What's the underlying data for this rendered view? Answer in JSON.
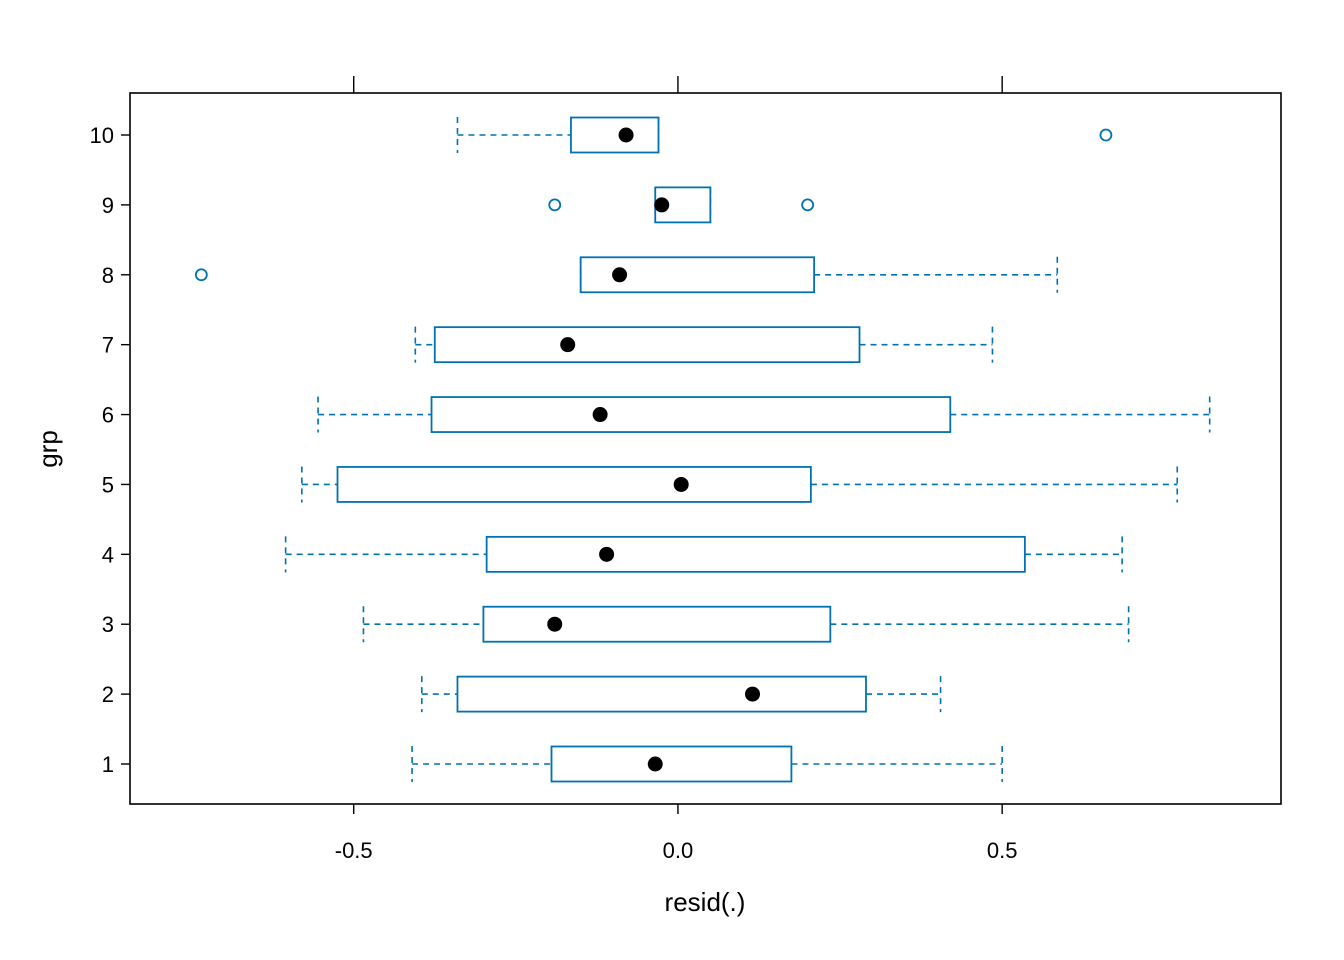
{
  "chart_data": {
    "type": "boxplot",
    "orientation": "horizontal",
    "xlabel": "resid(.)",
    "ylabel": "grp",
    "xlim": [
      -0.845,
      0.93
    ],
    "x_ticks": [
      -0.5,
      0.0,
      0.5
    ],
    "x_tick_labels": [
      "-0.5",
      "0.0",
      "0.5"
    ],
    "x_ticks_top": true,
    "grid": false,
    "colors": {
      "box": "#0072B2",
      "median_dot": "#000000",
      "frame": "#000000"
    },
    "categories": [
      "1",
      "2",
      "3",
      "4",
      "5",
      "6",
      "7",
      "8",
      "9",
      "10"
    ],
    "groups": [
      {
        "label": "1",
        "whisker_low": -0.41,
        "q1": -0.195,
        "median": -0.035,
        "q3": 0.175,
        "whisker_high": 0.5,
        "outliers": []
      },
      {
        "label": "2",
        "whisker_low": -0.395,
        "q1": -0.34,
        "median": 0.115,
        "q3": 0.29,
        "whisker_high": 0.405,
        "outliers": []
      },
      {
        "label": "3",
        "whisker_low": -0.485,
        "q1": -0.3,
        "median": -0.19,
        "q3": 0.235,
        "whisker_high": 0.695,
        "outliers": []
      },
      {
        "label": "4",
        "whisker_low": -0.605,
        "q1": -0.295,
        "median": -0.11,
        "q3": 0.535,
        "whisker_high": 0.685,
        "outliers": []
      },
      {
        "label": "5",
        "whisker_low": -0.58,
        "q1": -0.525,
        "median": 0.005,
        "q3": 0.205,
        "whisker_high": 0.77,
        "outliers": []
      },
      {
        "label": "6",
        "whisker_low": -0.555,
        "q1": -0.38,
        "median": -0.12,
        "q3": 0.42,
        "whisker_high": 0.82,
        "outliers": []
      },
      {
        "label": "7",
        "whisker_low": -0.405,
        "q1": -0.375,
        "median": -0.17,
        "q3": 0.28,
        "whisker_high": 0.485,
        "outliers": []
      },
      {
        "label": "8",
        "whisker_low": -0.15,
        "q1": -0.15,
        "median": -0.09,
        "q3": 0.21,
        "whisker_high": 0.585,
        "outliers": [
          -0.735
        ]
      },
      {
        "label": "9",
        "whisker_low": -0.035,
        "q1": -0.035,
        "median": -0.025,
        "q3": 0.05,
        "whisker_high": 0.05,
        "outliers": [
          -0.19,
          0.2
        ]
      },
      {
        "label": "10",
        "whisker_low": -0.34,
        "q1": -0.165,
        "median": -0.08,
        "q3": -0.03,
        "whisker_high": -0.03,
        "outliers": [
          0.66
        ]
      }
    ]
  }
}
